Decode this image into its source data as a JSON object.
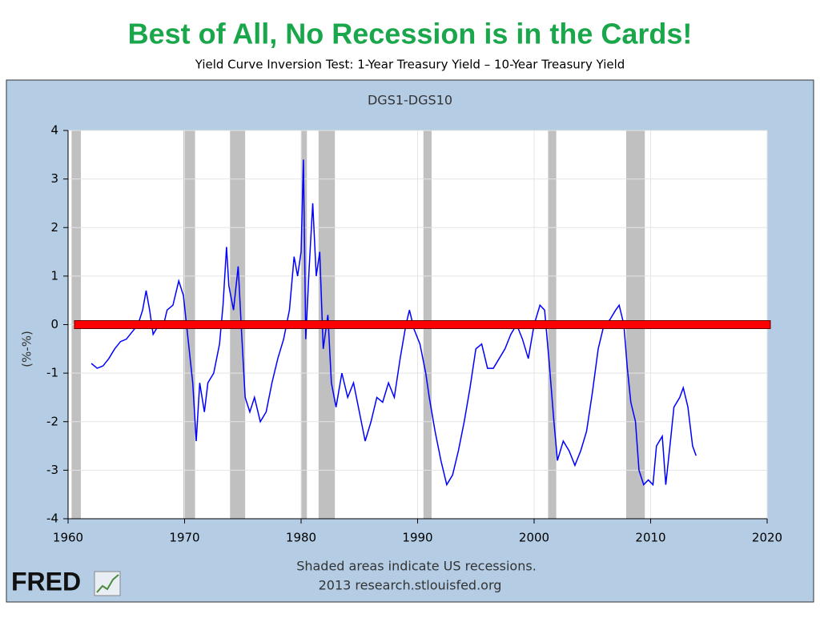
{
  "chart_data": {
    "type": "line",
    "title": "Best of All, No Recession is in the Cards!",
    "subtitle": "Yield Curve Inversion Test: 1-Year Treasury Yield – 10-Year Treasury Yield",
    "plot_title": "DGS1-DGS10",
    "ylabel": "(%-%)",
    "notes": [
      "Shaded areas indicate US recessions.",
      "2013 research.stlouisfed.org"
    ],
    "logo": "FRED",
    "xlim": [
      1960,
      2020
    ],
    "xticks": [
      1960,
      1970,
      1980,
      1990,
      2000,
      2010,
      2020
    ],
    "ylim": [
      -4,
      4
    ],
    "yticks": [
      -4,
      -3,
      -2,
      -1,
      0,
      1,
      2,
      3,
      4
    ],
    "grid": true,
    "recessions": [
      [
        1960.3,
        1961.1
      ],
      [
        1969.9,
        1970.9
      ],
      [
        1973.9,
        1975.2
      ],
      [
        1980.0,
        1980.5
      ],
      [
        1981.5,
        1982.9
      ],
      [
        1990.5,
        1991.2
      ],
      [
        2001.2,
        2001.9
      ],
      [
        2007.9,
        2009.5
      ]
    ],
    "recession_color": "#c0c0c0",
    "reference_line": {
      "value": 0,
      "color": "#ff0000"
    },
    "series": [
      {
        "name": "DGS1-DGS10",
        "color": "#0000ff",
        "x": [
          1962,
          1962.5,
          1963,
          1963.5,
          1964,
          1964.5,
          1965,
          1965.5,
          1966,
          1966.4,
          1966.7,
          1967,
          1967.3,
          1967.8,
          1968.2,
          1968.5,
          1969,
          1969.5,
          1969.9,
          1970.3,
          1970.7,
          1971,
          1971.3,
          1971.7,
          1972,
          1972.5,
          1973,
          1973.3,
          1973.6,
          1973.8,
          1974.2,
          1974.6,
          1974.9,
          1975.2,
          1975.6,
          1976,
          1976.5,
          1977,
          1977.5,
          1978,
          1978.5,
          1979,
          1979.4,
          1979.7,
          1980,
          1980.2,
          1980.4,
          1980.7,
          1981,
          1981.3,
          1981.6,
          1981.9,
          1982.3,
          1982.6,
          1983,
          1983.5,
          1984,
          1984.5,
          1985,
          1985.5,
          1986,
          1986.5,
          1987,
          1987.5,
          1988,
          1988.5,
          1989,
          1989.3,
          1989.7,
          1990.2,
          1990.7,
          1991,
          1991.5,
          1992,
          1992.5,
          1993,
          1993.5,
          1994,
          1994.5,
          1995,
          1995.5,
          1996,
          1996.5,
          1997,
          1997.5,
          1998,
          1998.5,
          1999,
          1999.5,
          2000,
          2000.5,
          2000.9,
          2001.3,
          2001.7,
          2002,
          2002.5,
          2003,
          2003.5,
          2004,
          2004.5,
          2005,
          2005.5,
          2006,
          2006.5,
          2007,
          2007.3,
          2007.7,
          2008,
          2008.3,
          2008.7,
          2009,
          2009.4,
          2009.8,
          2010.2,
          2010.5,
          2011,
          2011.3,
          2011.7,
          2012,
          2012.5,
          2012.8,
          2013.2,
          2013.6,
          2013.9
        ],
        "values": [
          -0.8,
          -0.9,
          -0.85,
          -0.7,
          -0.5,
          -0.35,
          -0.3,
          -0.15,
          0.0,
          0.3,
          0.7,
          0.3,
          -0.2,
          0.0,
          0.0,
          0.3,
          0.4,
          0.9,
          0.6,
          -0.3,
          -1.2,
          -2.4,
          -1.2,
          -1.8,
          -1.2,
          -1.0,
          -0.4,
          0.4,
          1.6,
          0.8,
          0.3,
          1.2,
          -0.2,
          -1.5,
          -1.8,
          -1.5,
          -2.0,
          -1.8,
          -1.2,
          -0.7,
          -0.3,
          0.3,
          1.4,
          1.0,
          1.5,
          3.4,
          -0.3,
          1.2,
          2.5,
          1.0,
          1.5,
          -0.5,
          0.2,
          -1.2,
          -1.7,
          -1.0,
          -1.5,
          -1.2,
          -1.8,
          -2.4,
          -2.0,
          -1.5,
          -1.6,
          -1.2,
          -1.5,
          -0.7,
          0.0,
          0.3,
          -0.1,
          -0.4,
          -1.0,
          -1.5,
          -2.2,
          -2.8,
          -3.3,
          -3.1,
          -2.6,
          -2.0,
          -1.3,
          -0.5,
          -0.4,
          -0.9,
          -0.9,
          -0.7,
          -0.5,
          -0.2,
          0.0,
          -0.3,
          -0.7,
          0.0,
          0.4,
          0.3,
          -0.8,
          -2.0,
          -2.8,
          -2.4,
          -2.6,
          -2.9,
          -2.6,
          -2.2,
          -1.4,
          -0.5,
          0.0,
          0.1,
          0.3,
          0.4,
          0.0,
          -0.9,
          -1.6,
          -2.0,
          -3.0,
          -3.3,
          -3.2,
          -3.3,
          -2.5,
          -2.3,
          -3.3,
          -2.4,
          -1.7,
          -1.5,
          -1.3,
          -1.7,
          -2.5,
          -2.7
        ]
      }
    ]
  }
}
